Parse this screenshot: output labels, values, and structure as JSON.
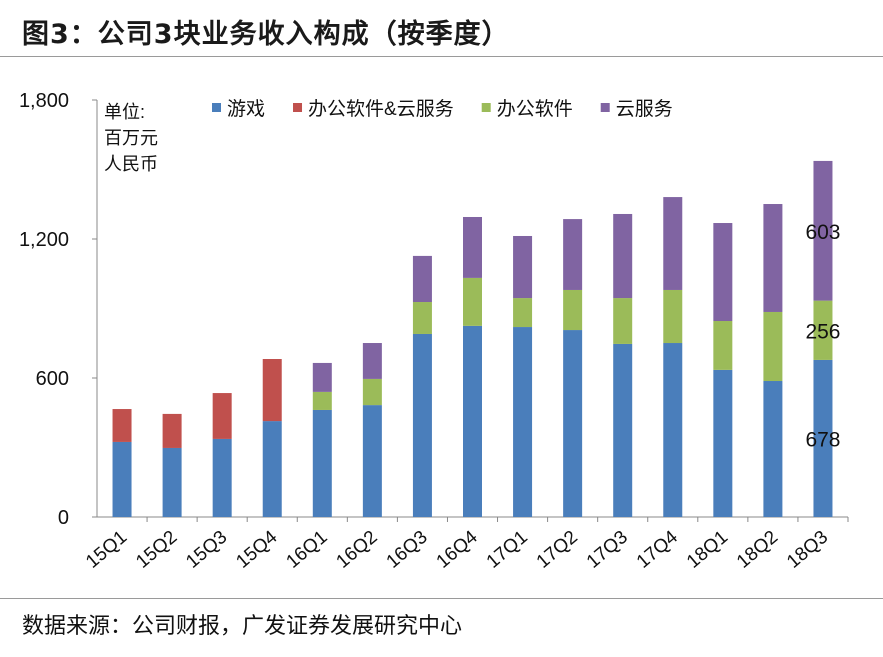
{
  "title": "图3：公司3块业务收入构成（按季度）",
  "source": "数据来源：公司财报，广发证券发展研究中心",
  "chart_data": {
    "type": "bar",
    "stacked": true,
    "unit_label": [
      "单位:",
      "百万元",
      "人民币"
    ],
    "categories": [
      "15Q1",
      "15Q2",
      "15Q3",
      "15Q4",
      "16Q1",
      "16Q2",
      "16Q3",
      "16Q4",
      "17Q1",
      "17Q2",
      "17Q3",
      "17Q4",
      "18Q1",
      "18Q2",
      "18Q3"
    ],
    "series": [
      {
        "name": "游戏",
        "color": "#4a7ebb",
        "values": [
          324,
          298,
          337,
          414,
          462,
          483,
          790,
          825,
          820,
          807,
          747,
          751,
          635,
          587,
          678
        ]
      },
      {
        "name": "办公软件&云服务",
        "color": "#c0504d",
        "values": [
          142,
          147,
          198,
          268,
          0,
          0,
          0,
          0,
          0,
          0,
          0,
          0,
          0,
          0,
          0
        ]
      },
      {
        "name": "办公软件",
        "color": "#9bbb59",
        "values": [
          0,
          0,
          0,
          0,
          78,
          113,
          138,
          207,
          125,
          173,
          198,
          229,
          211,
          298,
          256
        ]
      },
      {
        "name": "云服务",
        "color": "#8064a2",
        "values": [
          0,
          0,
          0,
          0,
          125,
          155,
          199,
          263,
          268,
          306,
          363,
          401,
          423,
          466,
          603
        ]
      }
    ],
    "data_labels": [
      {
        "category": "18Q3",
        "series": "游戏",
        "text": "678"
      },
      {
        "category": "18Q3",
        "series": "办公软件",
        "text": "256"
      },
      {
        "category": "18Q3",
        "series": "云服务",
        "text": "603"
      }
    ],
    "yticks": [
      "0",
      "600",
      "1,200",
      "1,800"
    ],
    "ylim": [
      0,
      1800
    ],
    "grid": false,
    "legend_position": "top"
  }
}
